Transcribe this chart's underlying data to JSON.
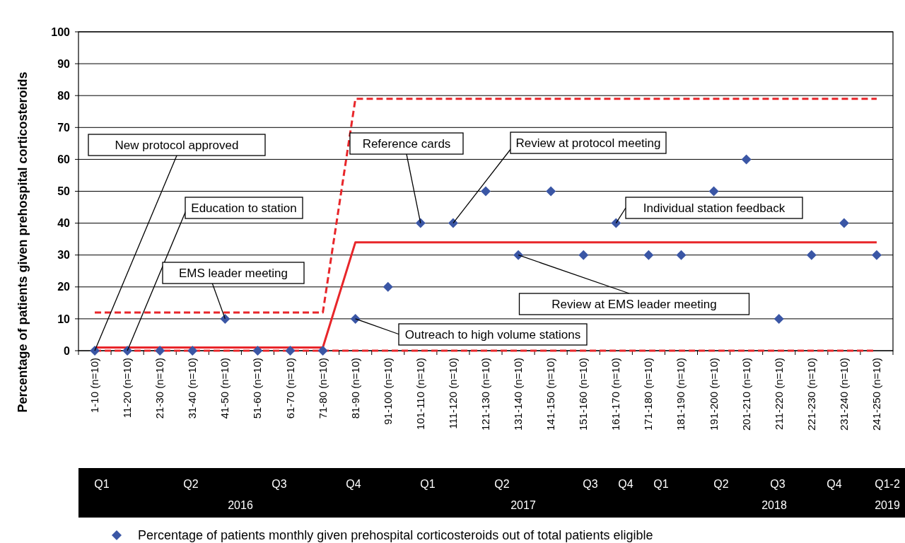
{
  "chart_data": {
    "type": "scatter",
    "ylabel": "Percentage of patients given prehospital corticosteroids",
    "categories": [
      "1-10 (n=10)",
      "11-20 (n=10)",
      "21-30 (n=10)",
      "31-40 (n=10)",
      "41-50 (n=10)",
      "51-60 (n=10)",
      "61-70 (n=10)",
      "71-80 (n=10)",
      "81-90 (n=10)",
      "91-100 (n=10)",
      "101-110 (n=10)",
      "111-120 (n=10)",
      "121-130 (n=10)",
      "131-140 (n=10)",
      "141-150 (n=10)",
      "151-160 (n=10)",
      "161-170 (n=10)",
      "171-180 (n=10)",
      "181-190 (n=10)",
      "191-200 (n=10)",
      "201-210 (n=10)",
      "211-220 (n=10)",
      "221-230 (n=10)",
      "231-240 (n=10)",
      "241-250 (n=10)"
    ],
    "series": [
      {
        "name": "Percentage of patients monthly given prehospital corticosteroids out of total patients eligible",
        "color": "#3a56a5",
        "marker": "diamond",
        "values": [
          0,
          0,
          0,
          0,
          10,
          0,
          0,
          0,
          10,
          20,
          40,
          40,
          50,
          30,
          50,
          30,
          40,
          30,
          30,
          50,
          60,
          10,
          30,
          40,
          30
        ]
      },
      {
        "type": "line",
        "color": "#e8262a",
        "line_style": "dashed",
        "values": [
          12,
          12,
          12,
          12,
          12,
          12,
          12,
          12,
          79,
          79,
          79,
          79,
          79,
          79,
          79,
          79,
          79,
          79,
          79,
          79,
          79,
          79,
          79,
          79,
          79
        ]
      },
      {
        "type": "line",
        "color": "#e8262a",
        "line_style": "solid",
        "values": [
          1,
          1,
          1,
          1,
          1,
          1,
          1,
          1,
          34,
          34,
          34,
          34,
          34,
          34,
          34,
          34,
          34,
          34,
          34,
          34,
          34,
          34,
          34,
          34,
          34
        ]
      },
      {
        "type": "line",
        "color": "#e8262a",
        "line_style": "dashed",
        "values": [
          0,
          0,
          0,
          0,
          0,
          0,
          0,
          0,
          0,
          0,
          0,
          0,
          0,
          0,
          0,
          0,
          0,
          0,
          0,
          0,
          0,
          0,
          0,
          0,
          0
        ]
      }
    ],
    "ylim": [
      0,
      100
    ],
    "yticks": [
      0,
      10,
      20,
      30,
      40,
      50,
      60,
      70,
      80,
      90,
      100
    ],
    "grid": "y",
    "legend": "bottom",
    "annotations": [
      {
        "text": "New protocol approved",
        "x": "1-10 (n=10)",
        "y": 0
      },
      {
        "text": "Education to station",
        "x": "11-20 (n=10)",
        "y": 0
      },
      {
        "text": "EMS leader meeting",
        "x": "41-50 (n=10)",
        "y": 10
      },
      {
        "text": "Reference cards",
        "x": "101-110 (n=10)",
        "y": 40
      },
      {
        "text": "Review at protocol meeting",
        "x": "111-120 (n=10)",
        "y": 40
      },
      {
        "text": "Individual station feedback",
        "x": "161-170 (n=10)",
        "y": 40
      },
      {
        "text": "Review at EMS leader meeting",
        "x": "131-140 (n=10)",
        "y": 30
      },
      {
        "text": "Outreach to high volume stations",
        "x": "81-90 (n=10)",
        "y": 10
      },
      "Q1",
      "Q2",
      "Q3",
      "Q4",
      "Q1",
      "Q2",
      "Q3",
      "Q4",
      "Q1",
      "Q2",
      "Q3",
      "Q4",
      "Q1-2",
      "2016",
      "2017",
      "2018",
      "2019"
    ]
  }
}
